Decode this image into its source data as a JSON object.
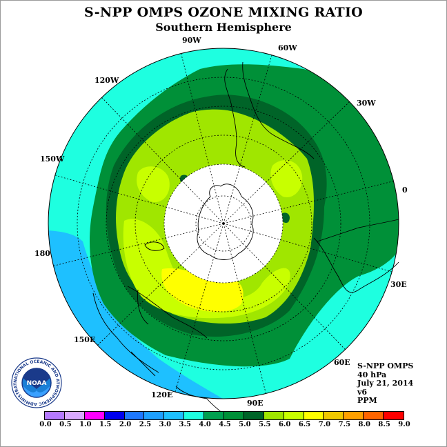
{
  "header": {
    "title": "S-NPP OMPS OZONE MIXING RATIO",
    "subtitle": "Southern Hemisphere"
  },
  "map": {
    "projection": "south-polar-stereographic",
    "longitude_labels": [
      "90W",
      "60W",
      "30W",
      "0",
      "30E",
      "60E",
      "90E",
      "120E",
      "150E",
      "180",
      "150W",
      "120W"
    ],
    "no_data_region": "polar-night"
  },
  "info": {
    "instrument": "S-NPP OMPS",
    "level": "40 hPa",
    "date": "July 21, 2014",
    "version": "v6",
    "units": "PPM"
  },
  "colorbar": {
    "ticks": [
      "0.0",
      "0.5",
      "1.0",
      "1.5",
      "2.0",
      "2.5",
      "3.0",
      "3.5",
      "4.0",
      "4.5",
      "5.0",
      "5.5",
      "6.0",
      "6.5",
      "7.0",
      "7.5",
      "8.0",
      "8.5",
      "9.0"
    ],
    "colors": [
      "#b57aff",
      "#d9a8ff",
      "#ff00ff",
      "#0000ee",
      "#1e78ff",
      "#1ea0ff",
      "#1ec0ff",
      "#1effe0",
      "#00a050",
      "#009038",
      "#006428",
      "#a0e600",
      "#c8ff00",
      "#ffff00",
      "#f0c800",
      "#ffa000",
      "#ff6400",
      "#ff0000",
      "#8c4e2a"
    ]
  },
  "logo": {
    "text": "NOAA",
    "ring_text": "NATIONAL OCEANIC AND ATMOSPHERIC ADMINISTRATION · U.S. DEPARTMENT OF COMMERCE"
  }
}
